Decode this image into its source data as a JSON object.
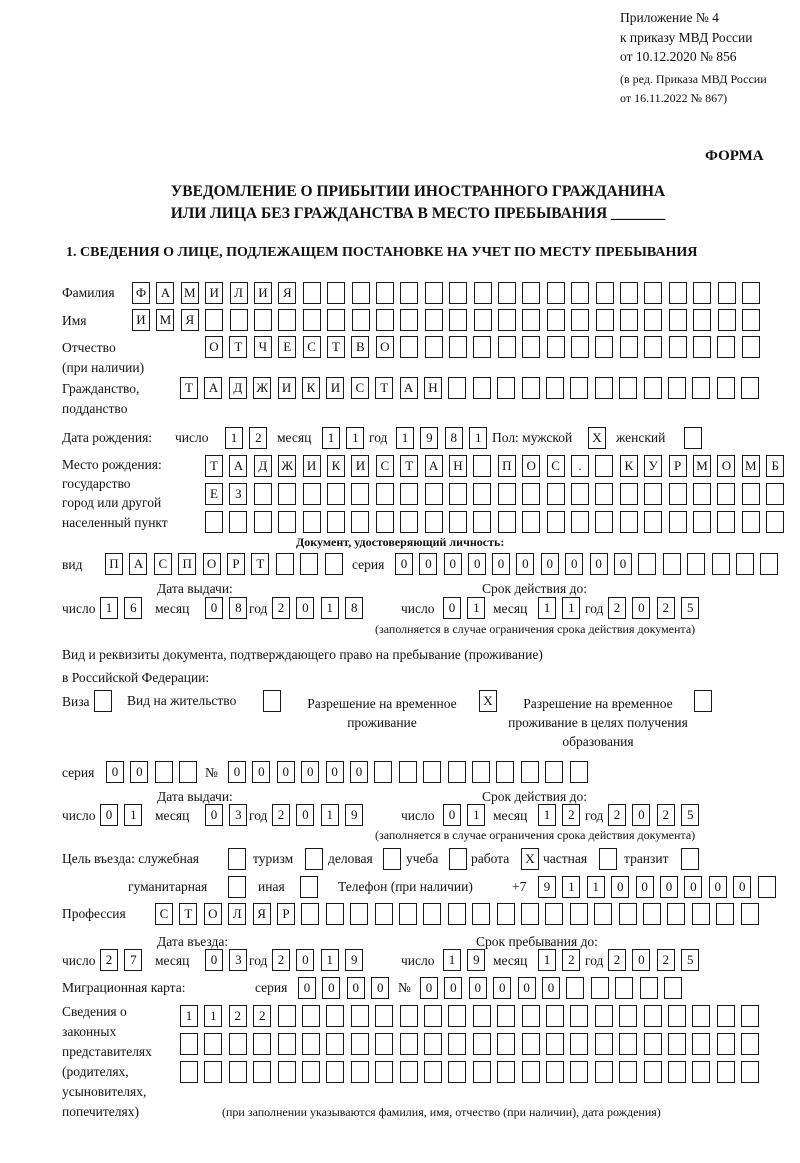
{
  "header": {
    "appendix": "Приложение № 4",
    "order": "к приказу МВД России",
    "order_date": "от 10.12.2020 № 856",
    "amendment_1": "(в ред. Приказа МВД России",
    "amendment_2": "от 16.11.2022 № 867)",
    "form_label": "ФОРМА",
    "title_1": "УВЕДОМЛЕНИЕ О ПРИБЫТИИ ИНОСТРАННОГО ГРАЖДАНИНА",
    "title_2": "ИЛИ ЛИЦА БЕЗ ГРАЖДАНСТВА В МЕСТО ПРЕБЫВАНИЯ _______",
    "section_1": "1. СВЕДЕНИЯ О ЛИЦЕ, ПОДЛЕЖАЩЕМ ПОСТАНОВКЕ НА УЧЕТ ПО МЕСТУ ПРЕБЫВАНИЯ"
  },
  "labels": {
    "surname": "Фамилия",
    "name": "Имя",
    "patronymic": "Отчество",
    "patronymic_note": "(при наличии)",
    "citizenship": "Гражданство,",
    "citizenship_2": "подданство",
    "dob": "Дата рождения:",
    "day": "число",
    "month": "месяц",
    "year": "год",
    "sex": "Пол: мужской",
    "female": "женский",
    "birthplace": "Место рождения:",
    "birthplace_2": "государство",
    "birthplace_3": "город или другой",
    "birthplace_4": "населенный пункт",
    "id_doc": "Документ, удостоверяющий личность:",
    "kind": "вид",
    "series": "серия",
    "number": "№",
    "issue_date": "Дата выдачи:",
    "valid_until": "Срок действия до:",
    "valid_note": "(заполняется в случае ограничения срока действия документа)",
    "right_doc_1": "Вид и реквизиты документа, подтверждающего право на пребывание (проживание)",
    "right_doc_2": "в Российской Федерации:",
    "visa": "Виза",
    "residence": "Вид на жительство",
    "temp_permit": "Разрешение на временное проживание",
    "temp_permit_edu": "Разрешение на временное проживание в целях получения образования",
    "purpose": "Цель въезда: служебная",
    "tourism": "туризм",
    "business": "деловая",
    "study": "учеба",
    "work": "работа",
    "private": "частная",
    "transit": "транзит",
    "humanitarian": "гуманитарная",
    "other": "иная",
    "phone": "Телефон (при наличии)",
    "phone_prefix": "+7",
    "profession": "Профессия",
    "entry_date": "Дата въезда:",
    "stay_until": "Срок пребывания до:",
    "migration_card": "Миграционная карта:",
    "reps_1": "Сведения о",
    "reps_2": "законных",
    "reps_3": "представителях",
    "reps_4": "(родителях,",
    "reps_5": "усыновителях,",
    "reps_6": "попечителях)",
    "reps_note": "(при заполнении указываются фамилия, имя, отчество (при наличии), дата рождения)"
  },
  "person": {
    "surname": "ФАМИЛИЯ",
    "name": "ИМЯ",
    "patronymic": "ОТЧЕСТВО",
    "citizenship": "ТАДЖИКИСТАН",
    "dob": {
      "day": "12",
      "month": "11",
      "year": "1981"
    },
    "sex_male": "X",
    "sex_female": "",
    "birthplace_1": "ТАДЖИКИСТАН ПОС. КУРМОМБ",
    "birthplace_2": "ЕЗ",
    "birthplace_3": "",
    "id_doc": {
      "kind": "ПАСПОРТ",
      "series": "0000",
      "number": "000000",
      "issue": {
        "day": "16",
        "month": "08",
        "year": "2018"
      },
      "valid": {
        "day": "01",
        "month": "11",
        "year": "2025"
      }
    },
    "right_doc": {
      "visa": "",
      "residence": "",
      "temp_permit": "X",
      "temp_permit_edu": "",
      "series": "00",
      "number": "000000",
      "issue": {
        "day": "01",
        "month": "03",
        "year": "2019"
      },
      "valid": {
        "day": "01",
        "month": "12",
        "year": "2025"
      }
    },
    "purpose": {
      "official": "",
      "tourism": "",
      "business": "",
      "study": "",
      "work": "X",
      "private": "",
      "transit": "",
      "humanitarian": "",
      "other": ""
    },
    "phone": "911000000",
    "profession": "СТОЛЯР",
    "entry": {
      "day": "27",
      "month": "03",
      "year": "2019"
    },
    "stay_until": {
      "day": "19",
      "month": "12",
      "year": "2025"
    },
    "migration_card": {
      "series": "0000",
      "number": "000000"
    },
    "reps_1": "1122",
    "reps_2": "",
    "reps_3": ""
  }
}
